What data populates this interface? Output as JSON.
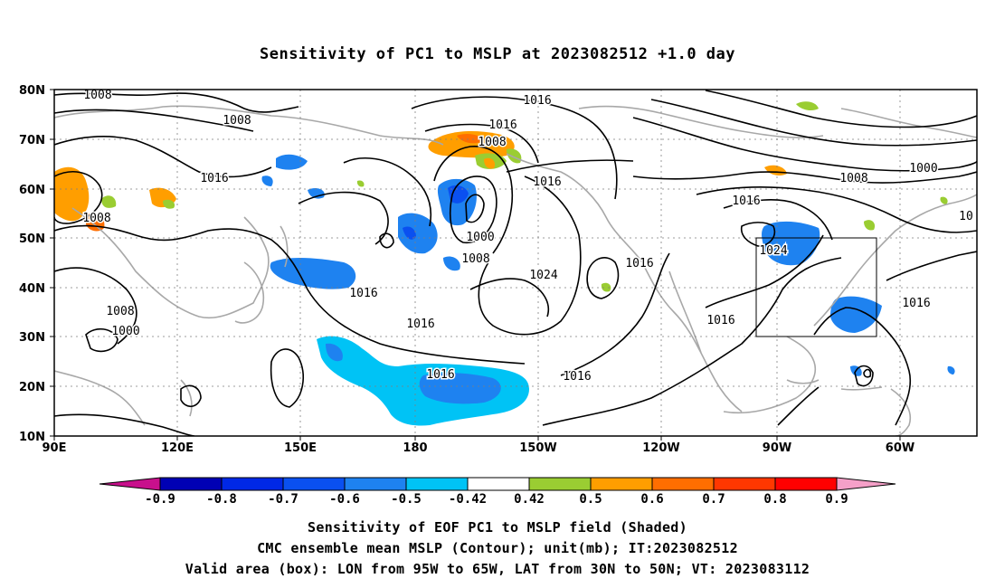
{
  "title": "Sensitivity of PC1 to MSLP at 2023082512 +1.0 day",
  "lat_labels": [
    "80N",
    "70N",
    "60N",
    "50N",
    "40N",
    "30N",
    "20N",
    "10N"
  ],
  "lon_labels": [
    "90E",
    "120E",
    "150E",
    "180",
    "150W",
    "120W",
    "90W",
    "60W"
  ],
  "contour_labels": [
    "1008",
    "1008",
    "1008",
    "1016",
    "1016",
    "1008",
    "1016",
    "1016",
    "1000",
    "1008",
    "1024",
    "1016",
    "1016",
    "1016",
    "1016",
    "1008",
    "1000",
    "1016",
    "1008",
    "1016",
    "1016",
    "1024",
    "1016",
    "10"
  ],
  "colorbar_labels": [
    "-0.9",
    "-0.8",
    "-0.7",
    "-0.6",
    "-0.5",
    "-0.42",
    "0.42",
    "0.5",
    "0.6",
    "0.7",
    "0.8",
    "0.9"
  ],
  "colors": {
    "below": "#c8108c",
    "bins": [
      "#0000b4",
      "#0028e6",
      "#0a50f0",
      "#1e82f0",
      "#00c3f5",
      "#ffffff",
      "#9acd32",
      "#ff9e00",
      "#ff6e00",
      "#ff3700",
      "#ff0000"
    ],
    "above": "#f5a0c8"
  },
  "footer": {
    "line1": "Sensitivity of EOF PC1 to MSLP field (Shaded)",
    "line2": "CMC ensemble mean MSLP (Contour); unit(mb); IT:2023082512",
    "line3": "Valid area (box): LON from 95W to 65W, LAT from 30N to 50N; VT: 2023083112"
  }
}
